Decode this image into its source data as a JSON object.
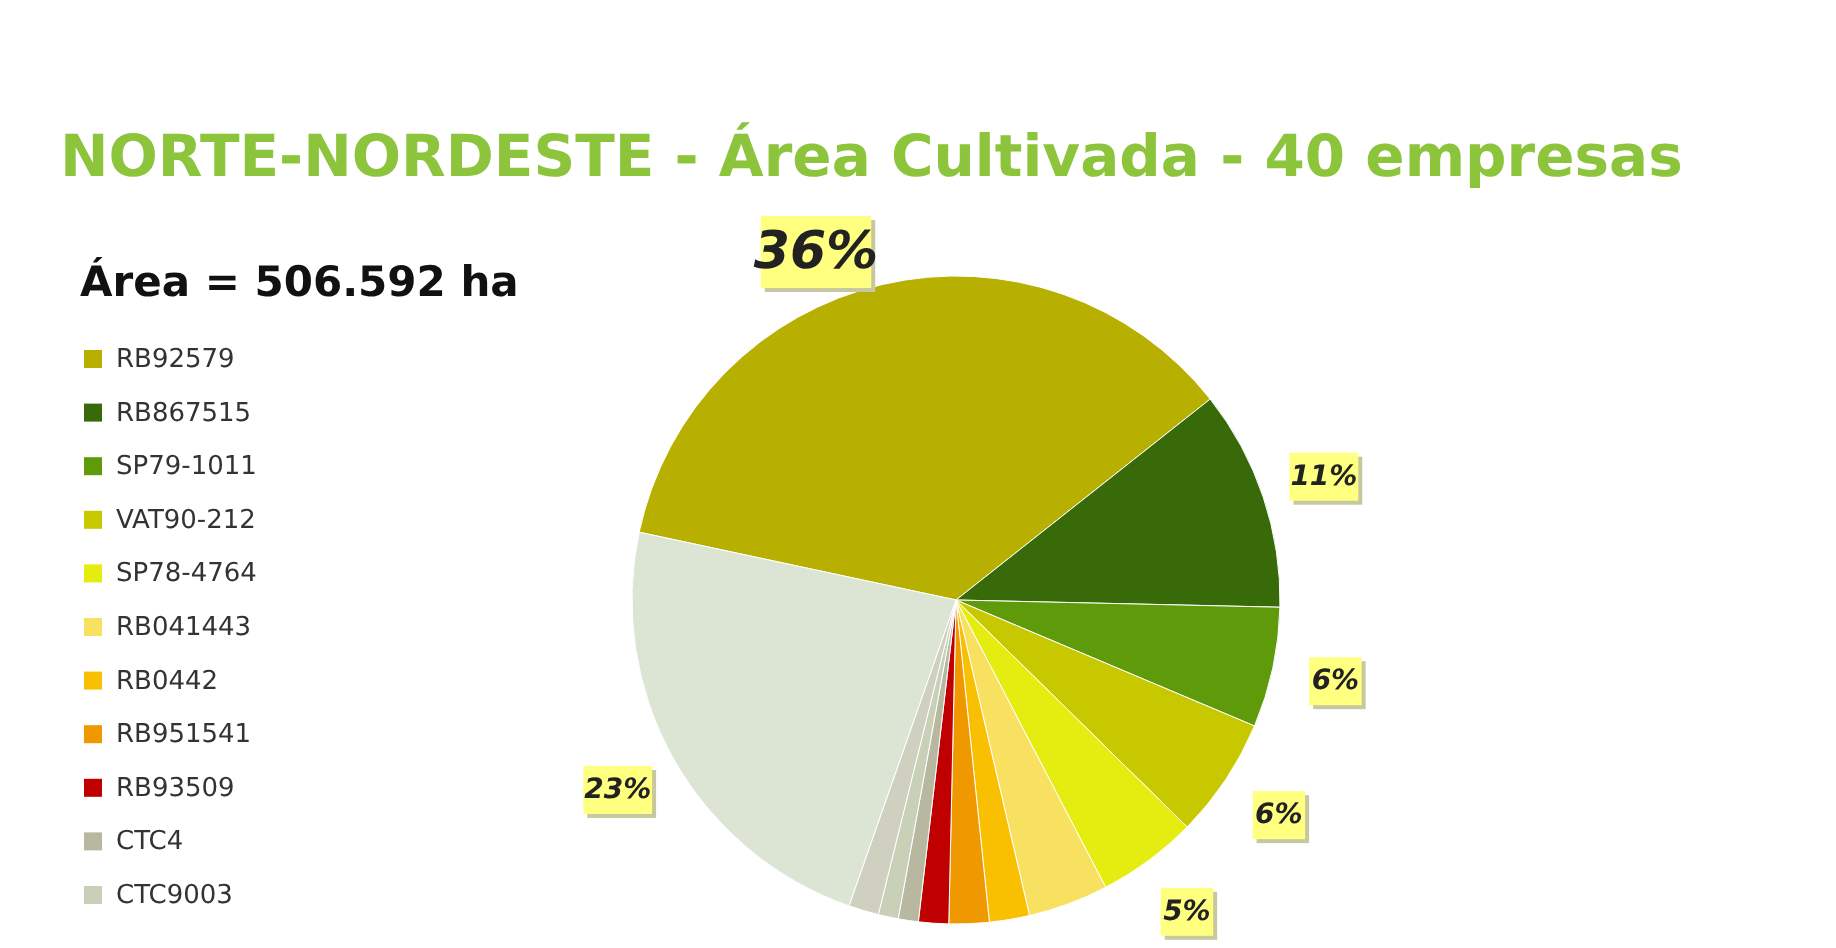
{
  "chart_data": {
    "type": "pie",
    "title": "NORTE-NORDESTE - Área Cultivada - 40 empresas",
    "subtitle": "Área = 506.592 ha",
    "categories": [
      "RB92579",
      "RB867515",
      "SP79-1011",
      "VAT90-212",
      "SP78-4764",
      "RB041443",
      "RB0442",
      "RB951541",
      "RB93509",
      "CTC4",
      "CTC9003",
      null,
      null
    ],
    "values": [
      36,
      11,
      6,
      6,
      5,
      4,
      2,
      2,
      1.5,
      1,
      1,
      1.5,
      23
    ],
    "colors": [
      "#b8b000",
      "#386a0a",
      "#5f9a0a",
      "#c8c800",
      "#e4ec10",
      "#f8e060",
      "#f8c000",
      "#f09800",
      "#c00000",
      "#b8b8a0",
      "#c8d0b8",
      "#d0d0c0",
      "#dce4d4"
    ],
    "value_labels": [
      "36%",
      "11%",
      "6%",
      "6%",
      "5%",
      null,
      null,
      null,
      null,
      null,
      null,
      null,
      "23%"
    ],
    "legend": "left"
  }
}
